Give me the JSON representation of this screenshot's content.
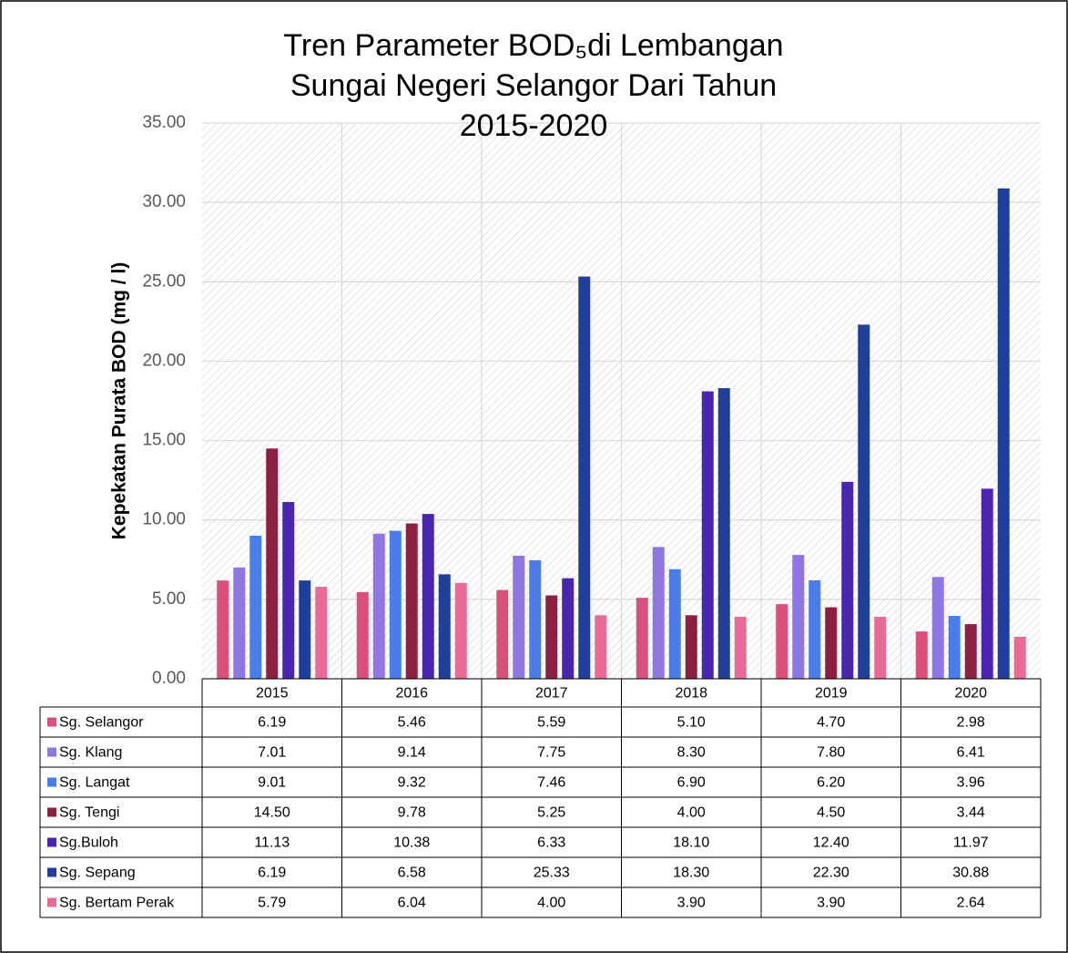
{
  "chart_data": {
    "type": "bar",
    "title": "Tren Parameter BOD₅di Lembangan Sungai Negeri Selangor Dari Tahun 2015-2020",
    "y_label": "Kepekatan Purata BOD (mg / l)",
    "categories": [
      "2015",
      "2016",
      "2017",
      "2018",
      "2019",
      "2020"
    ],
    "ylim": [
      0,
      35
    ],
    "yticks": [
      {
        "value": 0,
        "label": "0.00"
      },
      {
        "value": 5,
        "label": "5.00"
      },
      {
        "value": 10,
        "label": "10.00"
      },
      {
        "value": 15,
        "label": "15.00"
      },
      {
        "value": 20,
        "label": "20.00"
      },
      {
        "value": 25,
        "label": "25.00"
      },
      {
        "value": 30,
        "label": "30.00"
      },
      {
        "value": 35,
        "label": "35.00"
      }
    ],
    "grid": true,
    "series": [
      {
        "name": "Sg. Selangor",
        "color": "#d9507a",
        "values": [
          6.19,
          5.46,
          5.59,
          5.1,
          4.7,
          2.98
        ],
        "value_labels": [
          "6.19",
          "5.46",
          "5.59",
          "5.10",
          "4.70",
          "2.98"
        ]
      },
      {
        "name": "Sg. Klang",
        "color": "#8f76e0",
        "values": [
          7.01,
          9.14,
          7.75,
          8.3,
          7.8,
          6.41
        ],
        "value_labels": [
          "7.01",
          "9.14",
          "7.75",
          "8.30",
          "7.80",
          "6.41"
        ]
      },
      {
        "name": "Sg. Langat",
        "color": "#4a7de8",
        "values": [
          9.01,
          9.32,
          7.46,
          6.9,
          6.2,
          3.96
        ],
        "value_labels": [
          "9.01",
          "9.32",
          "7.46",
          "6.90",
          "6.20",
          "3.96"
        ]
      },
      {
        "name": "Sg. Tengi",
        "color": "#8b2040",
        "values": [
          14.5,
          9.78,
          5.25,
          4,
          4.5,
          3.44
        ],
        "value_labels": [
          "14.50",
          "9.78",
          "5.25",
          "4.00",
          "4.50",
          "3.44"
        ]
      },
      {
        "name": "Sg.Buloh",
        "color": "#4a25b0",
        "values": [
          11.13,
          10.38,
          6.33,
          18.1,
          12.4,
          11.97
        ],
        "value_labels": [
          "11.13",
          "10.38",
          "6.33",
          "18.10",
          "12.40",
          "11.97"
        ]
      },
      {
        "name": "Sg. Sepang",
        "color": "#1f3f9a",
        "values": [
          6.19,
          6.58,
          25.33,
          18.3,
          22.3,
          30.88
        ],
        "value_labels": [
          "6.19",
          "6.58",
          "25.33",
          "18.30",
          "22.30",
          "30.88"
        ]
      },
      {
        "name": "Sg. Bertam Perak",
        "color": "#e86b95",
        "values": [
          5.79,
          6.04,
          4,
          3.9,
          3.9,
          2.64
        ],
        "value_labels": [
          "5.79",
          "6.04",
          "4.00",
          "3.90",
          "3.90",
          "2.64"
        ]
      }
    ]
  }
}
